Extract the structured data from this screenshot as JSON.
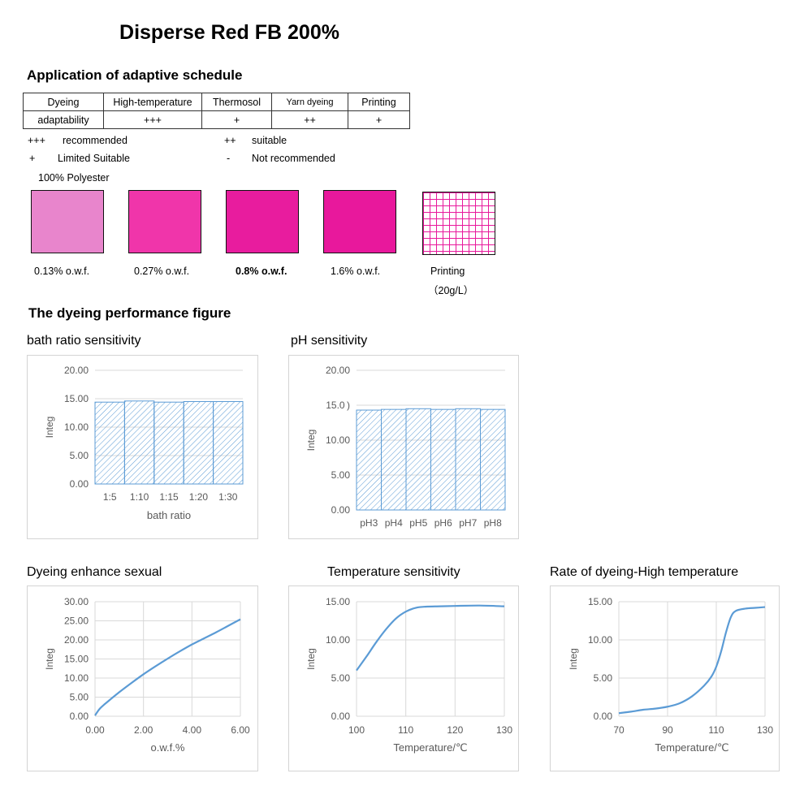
{
  "title": "Disperse Red FB 200%",
  "adaptive": {
    "heading": "Application of adaptive schedule",
    "row1": [
      "Dyeing",
      "High-temperature",
      "Thermosol",
      "Yarn dyeing",
      "Printing"
    ],
    "row2": [
      "adaptability",
      "+++",
      "+",
      "++",
      "+"
    ],
    "legend": [
      {
        "symbol": "+++",
        "text": "recommended"
      },
      {
        "symbol": "++",
        "text": "suitable"
      },
      {
        "symbol": "+",
        "text": "Limited Suitable"
      },
      {
        "symbol": "-",
        "text": "Not recommended"
      }
    ]
  },
  "swatches": {
    "substrate": "100% Polyester",
    "items": [
      {
        "label": "0.13% o.w.f.",
        "color": "#E885CC",
        "bold": false
      },
      {
        "label": "0.27% o.w.f.",
        "color": "#F035AA",
        "bold": false
      },
      {
        "label": "0.8% o.w.f.",
        "color": "#E81C9E",
        "bold": true
      },
      {
        "label": "1.6% o.w.f.",
        "color": "#E8189C",
        "bold": false
      }
    ],
    "printing": {
      "label1": "Printing",
      "label2": "（20g/L）",
      "grid_color": "#E8189C"
    }
  },
  "performance_heading": "The dyeing performance figure",
  "colors": {
    "series": "#5B9BD5",
    "hatch": "#5B9BD5",
    "gridline": "#D9D9D9",
    "axis_text": "#595959"
  },
  "chart_data": [
    {
      "id": "bath",
      "type": "bar",
      "title": "bath ratio sensitivity",
      "xlabel": "bath ratio",
      "ylabel": "Integ",
      "categories": [
        "1:5",
        "1:10",
        "1:15",
        "1:20",
        "1:30"
      ],
      "values": [
        14.4,
        14.6,
        14.4,
        14.5,
        14.5
      ],
      "ylim": [
        0,
        20
      ],
      "yticks": [
        "0.00",
        "5.00",
        "10.00",
        "15.00",
        "20.00"
      ],
      "grid": true
    },
    {
      "id": "ph",
      "type": "bar",
      "title": "pH sensitivity",
      "xlabel": "",
      "ylabel": "Integ",
      "categories": [
        "pH3",
        "pH4",
        "pH5",
        "pH6",
        "pH7",
        "pH8"
      ],
      "values": [
        14.3,
        14.4,
        14.5,
        14.4,
        14.5,
        14.4
      ],
      "ylim": [
        0,
        20
      ],
      "yticks": [
        "0.00",
        "5.00",
        "10.00",
        "15.0 )",
        "20.00"
      ],
      "grid": true
    },
    {
      "id": "owf",
      "type": "line",
      "title": "Dyeing enhance sexual",
      "xlabel": "o.w.f.%",
      "ylabel": "Integ",
      "x": [
        0,
        0.2,
        0.5,
        1,
        1.5,
        2,
        2.5,
        3,
        3.5,
        4,
        4.5,
        5,
        5.5,
        6
      ],
      "y": [
        0.2,
        2,
        3.7,
        6.3,
        8.7,
        11,
        13.1,
        15.1,
        17,
        18.8,
        20.4,
        22,
        23.7,
        25.4
      ],
      "xlim": [
        0,
        6
      ],
      "ylim": [
        0,
        30
      ],
      "xticks": [
        "0.00",
        "2.00",
        "4.00",
        "6.00"
      ],
      "yticks": [
        "0.00",
        "5.00",
        "10.00",
        "15.00",
        "20.00",
        "25.00",
        "30.00"
      ],
      "grid": true
    },
    {
      "id": "temp",
      "type": "line",
      "title": "Temperature sensitivity",
      "xlabel": "Temperature/℃",
      "ylabel": "Integ",
      "x": [
        100,
        102,
        104,
        106,
        108,
        110,
        112,
        114,
        117,
        120,
        125,
        130
      ],
      "y": [
        6.0,
        7.8,
        9.7,
        11.4,
        12.8,
        13.7,
        14.2,
        14.35,
        14.4,
        14.45,
        14.5,
        14.4
      ],
      "xlim": [
        100,
        130
      ],
      "ylim": [
        0,
        15
      ],
      "xticks": [
        "100",
        "110",
        "120",
        "130"
      ],
      "yticks": [
        "0.00",
        "5.00",
        "10.00",
        "15.00"
      ],
      "grid": true
    },
    {
      "id": "rate",
      "type": "line",
      "title": "Rate of dyeing-High temperature",
      "xlabel": "Temperature/℃",
      "ylabel": "Integ",
      "x": [
        70,
        75,
        80,
        85,
        90,
        95,
        100,
        105,
        108,
        110,
        112,
        114,
        116,
        118,
        122,
        126,
        130
      ],
      "y": [
        0.4,
        0.6,
        0.85,
        1.0,
        1.25,
        1.7,
        2.6,
        4.0,
        5.2,
        6.5,
        8.5,
        11.0,
        13.0,
        13.8,
        14.1,
        14.2,
        14.3
      ],
      "xlim": [
        70,
        130
      ],
      "ylim": [
        0,
        15
      ],
      "xticks": [
        "70",
        "90",
        "110",
        "130"
      ],
      "yticks": [
        "0.00",
        "5.00",
        "10.00",
        "15.00"
      ],
      "grid": true
    }
  ]
}
